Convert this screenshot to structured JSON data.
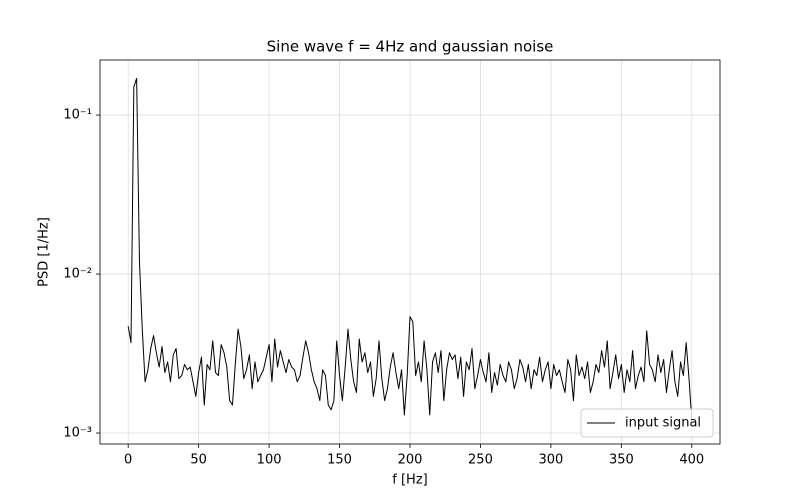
{
  "chart_data": {
    "type": "line",
    "title": "Sine wave f = 4Hz and gaussian noise",
    "xlabel": "f [Hz]",
    "ylabel": "PSD [1/Hz]",
    "log_y": true,
    "grid": true,
    "legend_loc": "lower right",
    "xlim": [
      -20,
      420
    ],
    "ylim": [
      0.000853,
      0.222
    ],
    "xticks": [
      0,
      50,
      100,
      150,
      200,
      250,
      300,
      350,
      400
    ],
    "yticks": [
      {
        "value": 0.001,
        "label": "10⁻³"
      },
      {
        "value": 0.01,
        "label": "10⁻²"
      },
      {
        "value": 0.1,
        "label": "10⁻¹"
      }
    ],
    "x": [
      0,
      2,
      4,
      6,
      8,
      10,
      12,
      14,
      16,
      18,
      20,
      22,
      24,
      26,
      28,
      30,
      32,
      34,
      36,
      38,
      40,
      42,
      44,
      46,
      48,
      50,
      52,
      54,
      56,
      58,
      60,
      62,
      64,
      66,
      68,
      70,
      72,
      74,
      76,
      78,
      80,
      82,
      84,
      86,
      88,
      90,
      92,
      94,
      96,
      98,
      100,
      102,
      104,
      106,
      108,
      110,
      112,
      114,
      116,
      118,
      120,
      122,
      124,
      126,
      128,
      130,
      132,
      134,
      136,
      138,
      140,
      142,
      144,
      146,
      148,
      150,
      152,
      154,
      156,
      158,
      160,
      162,
      164,
      166,
      168,
      170,
      172,
      174,
      176,
      178,
      180,
      182,
      184,
      186,
      188,
      190,
      192,
      194,
      196,
      198,
      200,
      202,
      204,
      206,
      208,
      210,
      212,
      214,
      216,
      218,
      220,
      222,
      224,
      226,
      228,
      230,
      232,
      234,
      236,
      238,
      240,
      242,
      244,
      246,
      248,
      250,
      252,
      254,
      256,
      258,
      260,
      262,
      264,
      266,
      268,
      270,
      272,
      274,
      276,
      278,
      280,
      282,
      284,
      286,
      288,
      290,
      292,
      294,
      296,
      298,
      300,
      302,
      304,
      306,
      308,
      310,
      312,
      314,
      316,
      318,
      320,
      322,
      324,
      326,
      328,
      330,
      332,
      334,
      336,
      338,
      340,
      342,
      344,
      346,
      348,
      350,
      352,
      354,
      356,
      358,
      360,
      362,
      364,
      366,
      368,
      370,
      372,
      374,
      376,
      378,
      380,
      382,
      384,
      386,
      388,
      390,
      392,
      394,
      396,
      398,
      400
    ],
    "series": [
      {
        "name": "input signal",
        "color": "#000000",
        "values": [
          0.0047,
          0.0037,
          0.15,
          0.17,
          0.012,
          0.0045,
          0.0021,
          0.0025,
          0.0034,
          0.0041,
          0.0032,
          0.0026,
          0.0035,
          0.0024,
          0.0028,
          0.0021,
          0.0031,
          0.0034,
          0.0022,
          0.0023,
          0.0027,
          0.0025,
          0.0026,
          0.0021,
          0.0017,
          0.0024,
          0.003,
          0.0015,
          0.0027,
          0.0025,
          0.0038,
          0.0024,
          0.0023,
          0.0036,
          0.0032,
          0.0026,
          0.0016,
          0.0015,
          0.0027,
          0.0045,
          0.0035,
          0.0022,
          0.0025,
          0.0031,
          0.0019,
          0.0028,
          0.0021,
          0.0023,
          0.0025,
          0.003,
          0.0036,
          0.0021,
          0.0039,
          0.0026,
          0.0033,
          0.0028,
          0.0024,
          0.0029,
          0.0026,
          0.0025,
          0.0021,
          0.0023,
          0.003,
          0.0038,
          0.0032,
          0.0025,
          0.0021,
          0.0019,
          0.0016,
          0.0025,
          0.0023,
          0.0015,
          0.0014,
          0.0016,
          0.0038,
          0.0023,
          0.0016,
          0.0026,
          0.0045,
          0.0029,
          0.0021,
          0.0018,
          0.0039,
          0.0028,
          0.0032,
          0.0024,
          0.0028,
          0.0017,
          0.0022,
          0.0038,
          0.0022,
          0.0016,
          0.0019,
          0.0026,
          0.0032,
          0.0024,
          0.0019,
          0.0025,
          0.0013,
          0.0023,
          0.0054,
          0.005,
          0.0023,
          0.0028,
          0.0021,
          0.0038,
          0.0025,
          0.0013,
          0.0028,
          0.0032,
          0.0024,
          0.0033,
          0.0016,
          0.0025,
          0.0032,
          0.0029,
          0.0031,
          0.0022,
          0.003,
          0.0017,
          0.0028,
          0.0025,
          0.0034,
          0.0019,
          0.0023,
          0.0029,
          0.0024,
          0.0021,
          0.0032,
          0.0018,
          0.0024,
          0.002,
          0.0027,
          0.0023,
          0.0021,
          0.0028,
          0.0025,
          0.0019,
          0.0022,
          0.0029,
          0.0026,
          0.0021,
          0.0027,
          0.0019,
          0.0025,
          0.0023,
          0.003,
          0.0021,
          0.0025,
          0.0028,
          0.0019,
          0.0027,
          0.0023,
          0.0025,
          0.0021,
          0.0018,
          0.0029,
          0.0025,
          0.0016,
          0.0031,
          0.0023,
          0.0026,
          0.0022,
          0.0028,
          0.0018,
          0.0021,
          0.0027,
          0.0024,
          0.0033,
          0.0026,
          0.0038,
          0.0019,
          0.0024,
          0.0031,
          0.0022,
          0.0027,
          0.0018,
          0.0025,
          0.0021,
          0.0033,
          0.0019,
          0.0023,
          0.0026,
          0.0021,
          0.0044,
          0.0027,
          0.0025,
          0.0021,
          0.0031,
          0.0024,
          0.0029,
          0.0018,
          0.0025,
          0.0033,
          0.0021,
          0.0017,
          0.0028,
          0.0023,
          0.0037,
          0.0022,
          0.0012
        ]
      }
    ]
  }
}
